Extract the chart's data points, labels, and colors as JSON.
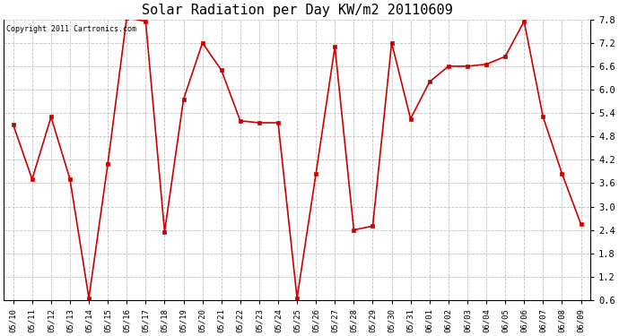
{
  "title": "Solar Radiation per Day KW/m2 20110609",
  "copyright_text": "Copyright 2011 Cartronics.com",
  "dates": [
    "05/10",
    "05/11",
    "05/12",
    "05/13",
    "05/14",
    "05/15",
    "05/16",
    "05/17",
    "05/18",
    "05/19",
    "05/20",
    "05/21",
    "05/22",
    "05/23",
    "05/24",
    "05/25",
    "05/26",
    "05/27",
    "05/28",
    "05/29",
    "05/30",
    "05/31",
    "06/01",
    "06/02",
    "06/03",
    "06/04",
    "06/05",
    "06/06",
    "06/07",
    "06/08",
    "06/09"
  ],
  "values": [
    5.1,
    3.7,
    5.3,
    3.7,
    0.65,
    4.1,
    7.85,
    7.75,
    2.35,
    5.75,
    7.2,
    6.5,
    5.2,
    5.15,
    5.15,
    0.65,
    3.85,
    7.1,
    2.4,
    2.5,
    7.2,
    5.25,
    6.2,
    6.6,
    6.6,
    6.65,
    6.85,
    7.75,
    5.3,
    3.85,
    2.55
  ],
  "line_color": "#cc0000",
  "marker_color": "#cc0000",
  "bg_color": "#ffffff",
  "grid_color": "#b0b0b0",
  "title_fontsize": 11,
  "copyright_fontsize": 6,
  "x_tick_fontsize": 6.5,
  "y_tick_fontsize": 7.5,
  "ylim_min": 0.6,
  "ylim_max": 7.8,
  "yticks": [
    0.6,
    1.2,
    1.8,
    2.4,
    3.0,
    3.6,
    4.2,
    4.8,
    5.4,
    6.0,
    6.6,
    7.2,
    7.8
  ]
}
